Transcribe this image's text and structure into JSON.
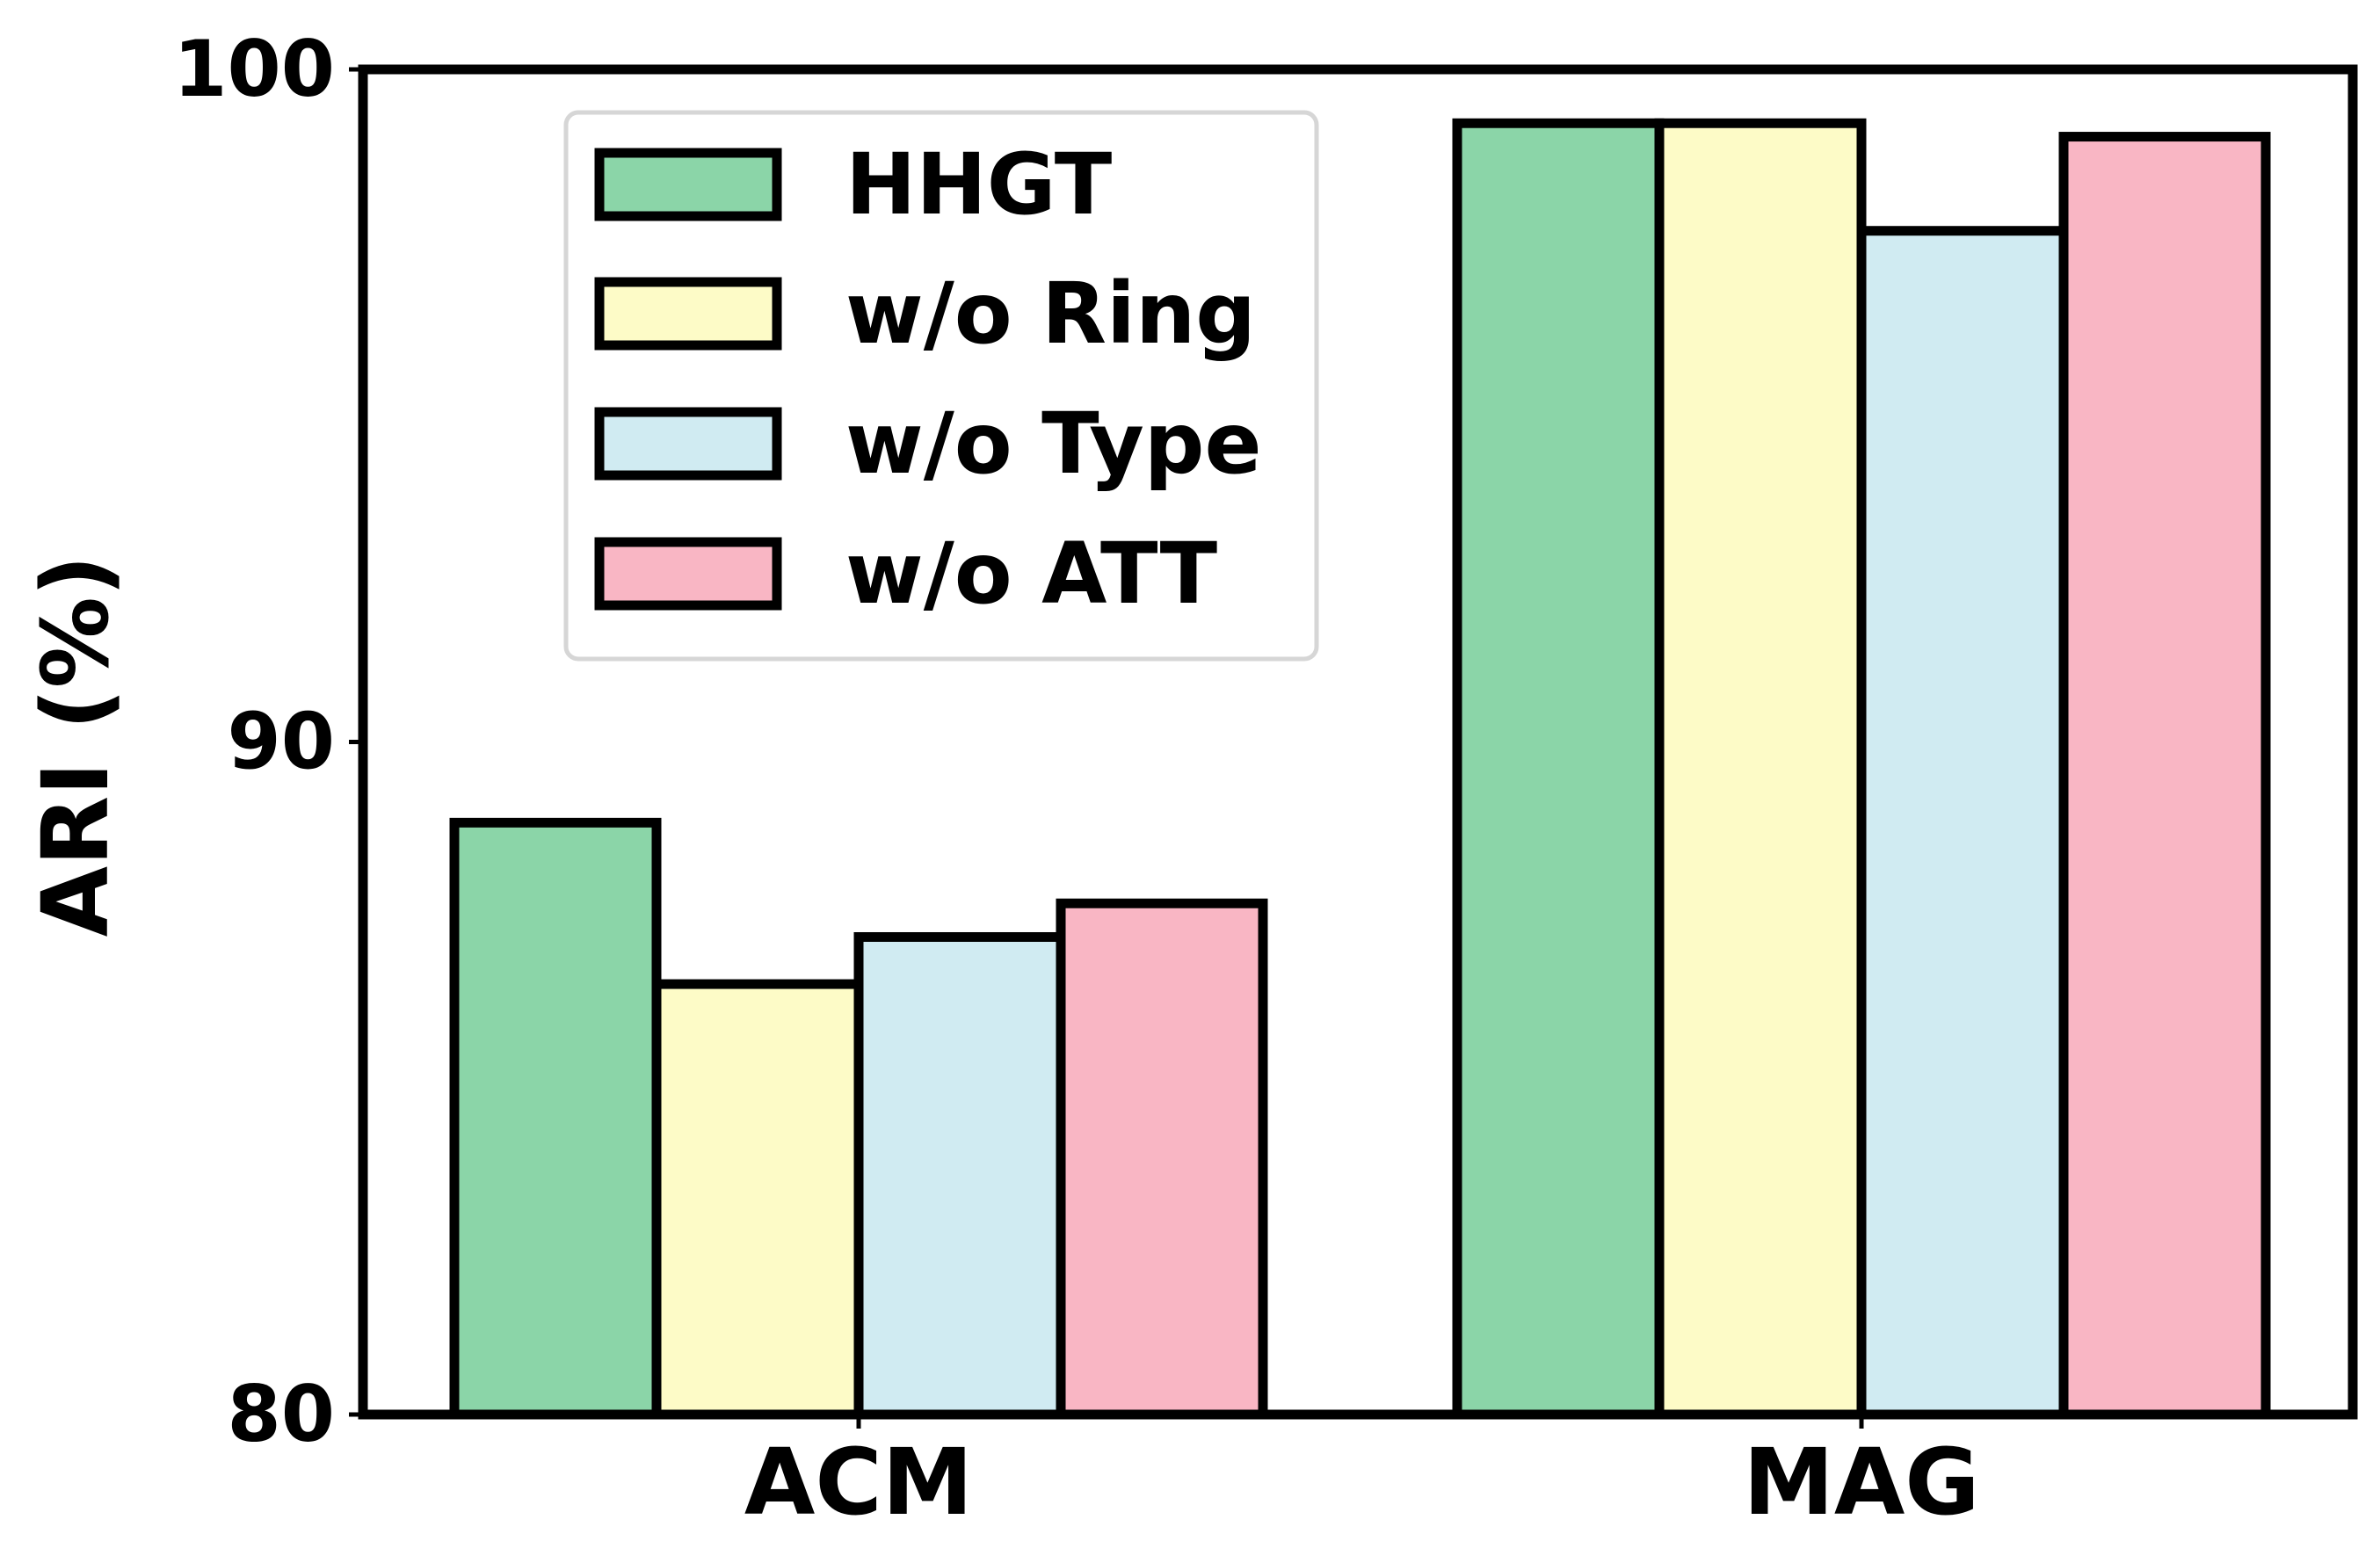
{
  "chart_data": {
    "type": "bar",
    "categories": [
      "ACM",
      "MAG"
    ],
    "series": [
      {
        "name": "HHGT",
        "color": "#8bd5a8",
        "values": [
          88.8,
          99.2
        ]
      },
      {
        "name": "w/o Ring",
        "color": "#fdfbc7",
        "values": [
          86.4,
          99.2
        ]
      },
      {
        "name": "w/o Type",
        "color": "#d0ebf2",
        "values": [
          87.1,
          97.6
        ]
      },
      {
        "name": "w/o ATT",
        "color": "#f9b6c4",
        "values": [
          87.6,
          99.0
        ]
      }
    ],
    "ylabel": "ARI (%)",
    "xlabel": "",
    "ylim": [
      80,
      100
    ],
    "yticks": [
      80,
      90,
      100
    ],
    "legend_position": "upper-left",
    "grid": false
  }
}
